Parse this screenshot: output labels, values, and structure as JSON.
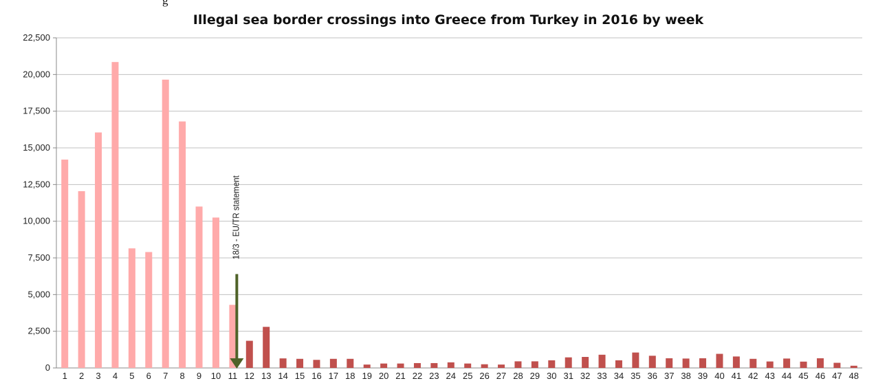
{
  "chart_data": {
    "type": "bar",
    "title": "Illegal sea border crossings into Greece from Turkey in 2016 by week",
    "categories": [
      "1",
      "2",
      "3",
      "4",
      "5",
      "6",
      "7",
      "8",
      "9",
      "10",
      "11",
      "12",
      "13",
      "14",
      "15",
      "16",
      "17",
      "18",
      "19",
      "20",
      "21",
      "22",
      "23",
      "24",
      "25",
      "26",
      "27",
      "28",
      "29",
      "30",
      "31",
      "32",
      "33",
      "34",
      "35",
      "36",
      "37",
      "38",
      "39",
      "40",
      "41",
      "42",
      "43",
      "44",
      "45",
      "46",
      "47",
      "48"
    ],
    "values": [
      14200,
      12050,
      16050,
      20850,
      8150,
      7900,
      19650,
      16800,
      11000,
      10250,
      4300,
      1850,
      2800,
      650,
      620,
      550,
      620,
      620,
      230,
      300,
      300,
      330,
      330,
      380,
      300,
      250,
      230,
      450,
      450,
      520,
      720,
      750,
      900,
      520,
      1050,
      830,
      660,
      640,
      660,
      960,
      780,
      620,
      440,
      640,
      430,
      660,
      350,
      150
    ],
    "highlight_count": 11,
    "colors": {
      "before": "#FFAAAA",
      "after": "#C0504D",
      "arrow": "#4F6228",
      "grid": "#C0C0C0"
    },
    "ylim": [
      0,
      22500
    ],
    "yticks": [
      "0",
      "2,500",
      "5,000",
      "7,500",
      "10,000",
      "12,500",
      "15,000",
      "17,500",
      "20,000",
      "22,500"
    ],
    "grid": true,
    "xlabel": "",
    "ylabel": "",
    "annotation": {
      "text": "18/3 - EU/TR statement",
      "at_week": "11"
    }
  },
  "page": {
    "top_cut_text": "g"
  }
}
